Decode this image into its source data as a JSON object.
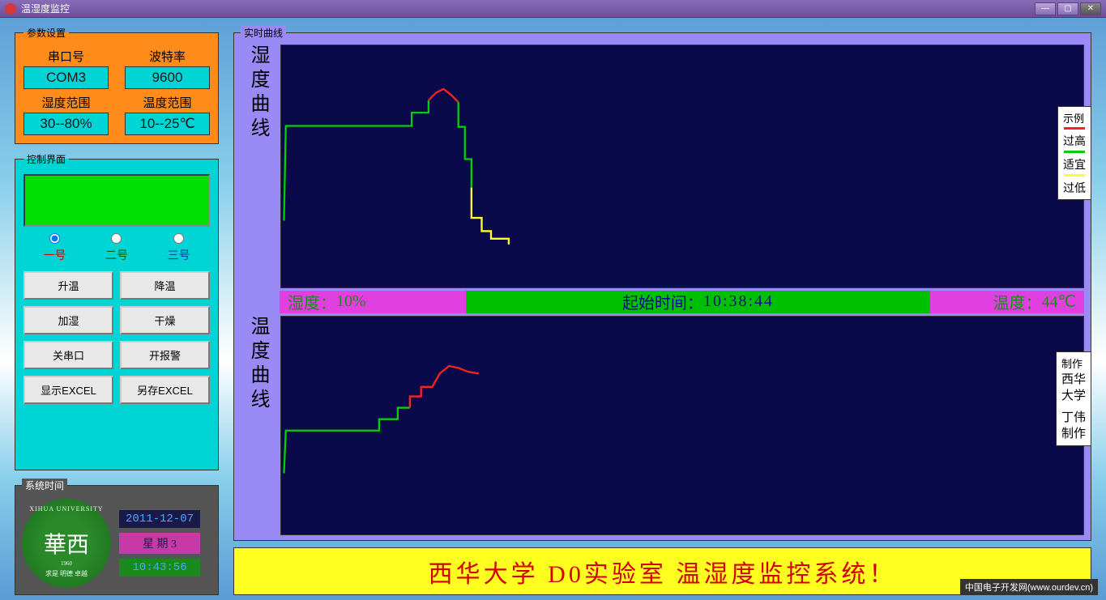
{
  "window": {
    "title": "温湿度监控"
  },
  "params": {
    "legend": "参数设置",
    "serial_label": "串口号",
    "serial_value": "COM3",
    "baud_label": "波特率",
    "baud_value": "9600",
    "hum_range_label": "湿度范围",
    "hum_range_value": "30--80%",
    "temp_range_label": "温度范围",
    "temp_range_value": "10--25℃"
  },
  "control": {
    "legend": "控制界面",
    "ch1": "一号",
    "ch2": "二号",
    "ch3": "三号",
    "btn_heat": "升温",
    "btn_cool": "降温",
    "btn_humidify": "加湿",
    "btn_dry": "干燥",
    "btn_close_serial": "关串口",
    "btn_alarm": "开报警",
    "btn_show_excel": "显示EXCEL",
    "btn_save_excel": "另存EXCEL"
  },
  "systime": {
    "legend": "系统时间",
    "uni_name_en": "XIHUA UNIVERSITY",
    "uni_zh": "華西",
    "uni_year": "1960",
    "uni_motto": "求是 明德 卓越",
    "date": "2011-12-07",
    "weekday": "星 期 3",
    "clock": "10:43:56"
  },
  "charts": {
    "frame_legend": "实时曲线",
    "hum_ylabel": "湿度曲线",
    "temp_ylabel": "温度曲线",
    "background": "#0a0a4a",
    "colors": {
      "high": "#ff2020",
      "ok": "#00d000",
      "low": "#ffff30"
    },
    "hum_series": {
      "type": "line",
      "points_green": [
        [
          3,
          185
        ],
        [
          5,
          85
        ],
        [
          140,
          85
        ],
        [
          140,
          71
        ],
        [
          158,
          71
        ],
        [
          158,
          58
        ]
      ],
      "points_red": [
        [
          158,
          58
        ],
        [
          166,
          50
        ],
        [
          174,
          46
        ],
        [
          182,
          52
        ],
        [
          190,
          60
        ]
      ],
      "points_green2": [
        [
          190,
          60
        ],
        [
          190,
          86
        ],
        [
          197,
          86
        ],
        [
          197,
          120
        ],
        [
          204,
          120
        ],
        [
          204,
          150
        ]
      ],
      "points_yellow": [
        [
          204,
          150
        ],
        [
          204,
          182
        ],
        [
          215,
          182
        ],
        [
          215,
          196
        ],
        [
          225,
          196
        ],
        [
          225,
          204
        ],
        [
          244,
          204
        ],
        [
          244,
          210
        ]
      ],
      "stroke_width": 2
    },
    "temp_series": {
      "type": "line",
      "points_green": [
        [
          3,
          165
        ],
        [
          5,
          120
        ],
        [
          105,
          120
        ],
        [
          105,
          108
        ],
        [
          125,
          108
        ],
        [
          125,
          96
        ],
        [
          138,
          96
        ]
      ],
      "points_red": [
        [
          138,
          96
        ],
        [
          138,
          84
        ],
        [
          150,
          84
        ],
        [
          150,
          74
        ],
        [
          162,
          74
        ],
        [
          170,
          60
        ],
        [
          180,
          52
        ],
        [
          190,
          54
        ],
        [
          200,
          58
        ],
        [
          212,
          60
        ]
      ],
      "stroke_width": 2
    }
  },
  "midbar": {
    "hum_label": "湿度：",
    "hum_value": "10%",
    "time_label": "起始时间：",
    "time_value": "10:38:44",
    "temp_label": "温度：",
    "temp_value": "44℃"
  },
  "legend_box": {
    "title": "示例",
    "high": "过高",
    "ok": "适宜",
    "low": "过低",
    "high_color": "#ff2020",
    "ok_color": "#00d000",
    "low_color": "#ffff30"
  },
  "credits": {
    "title": "制作",
    "line1": "西华",
    "line2": "大学",
    "line3": "丁伟",
    "line4": "制作"
  },
  "banner": "西华大学  D0实验室  温湿度监控系统！",
  "watermark": "中国电子开发网(www.ourdev.cn)"
}
